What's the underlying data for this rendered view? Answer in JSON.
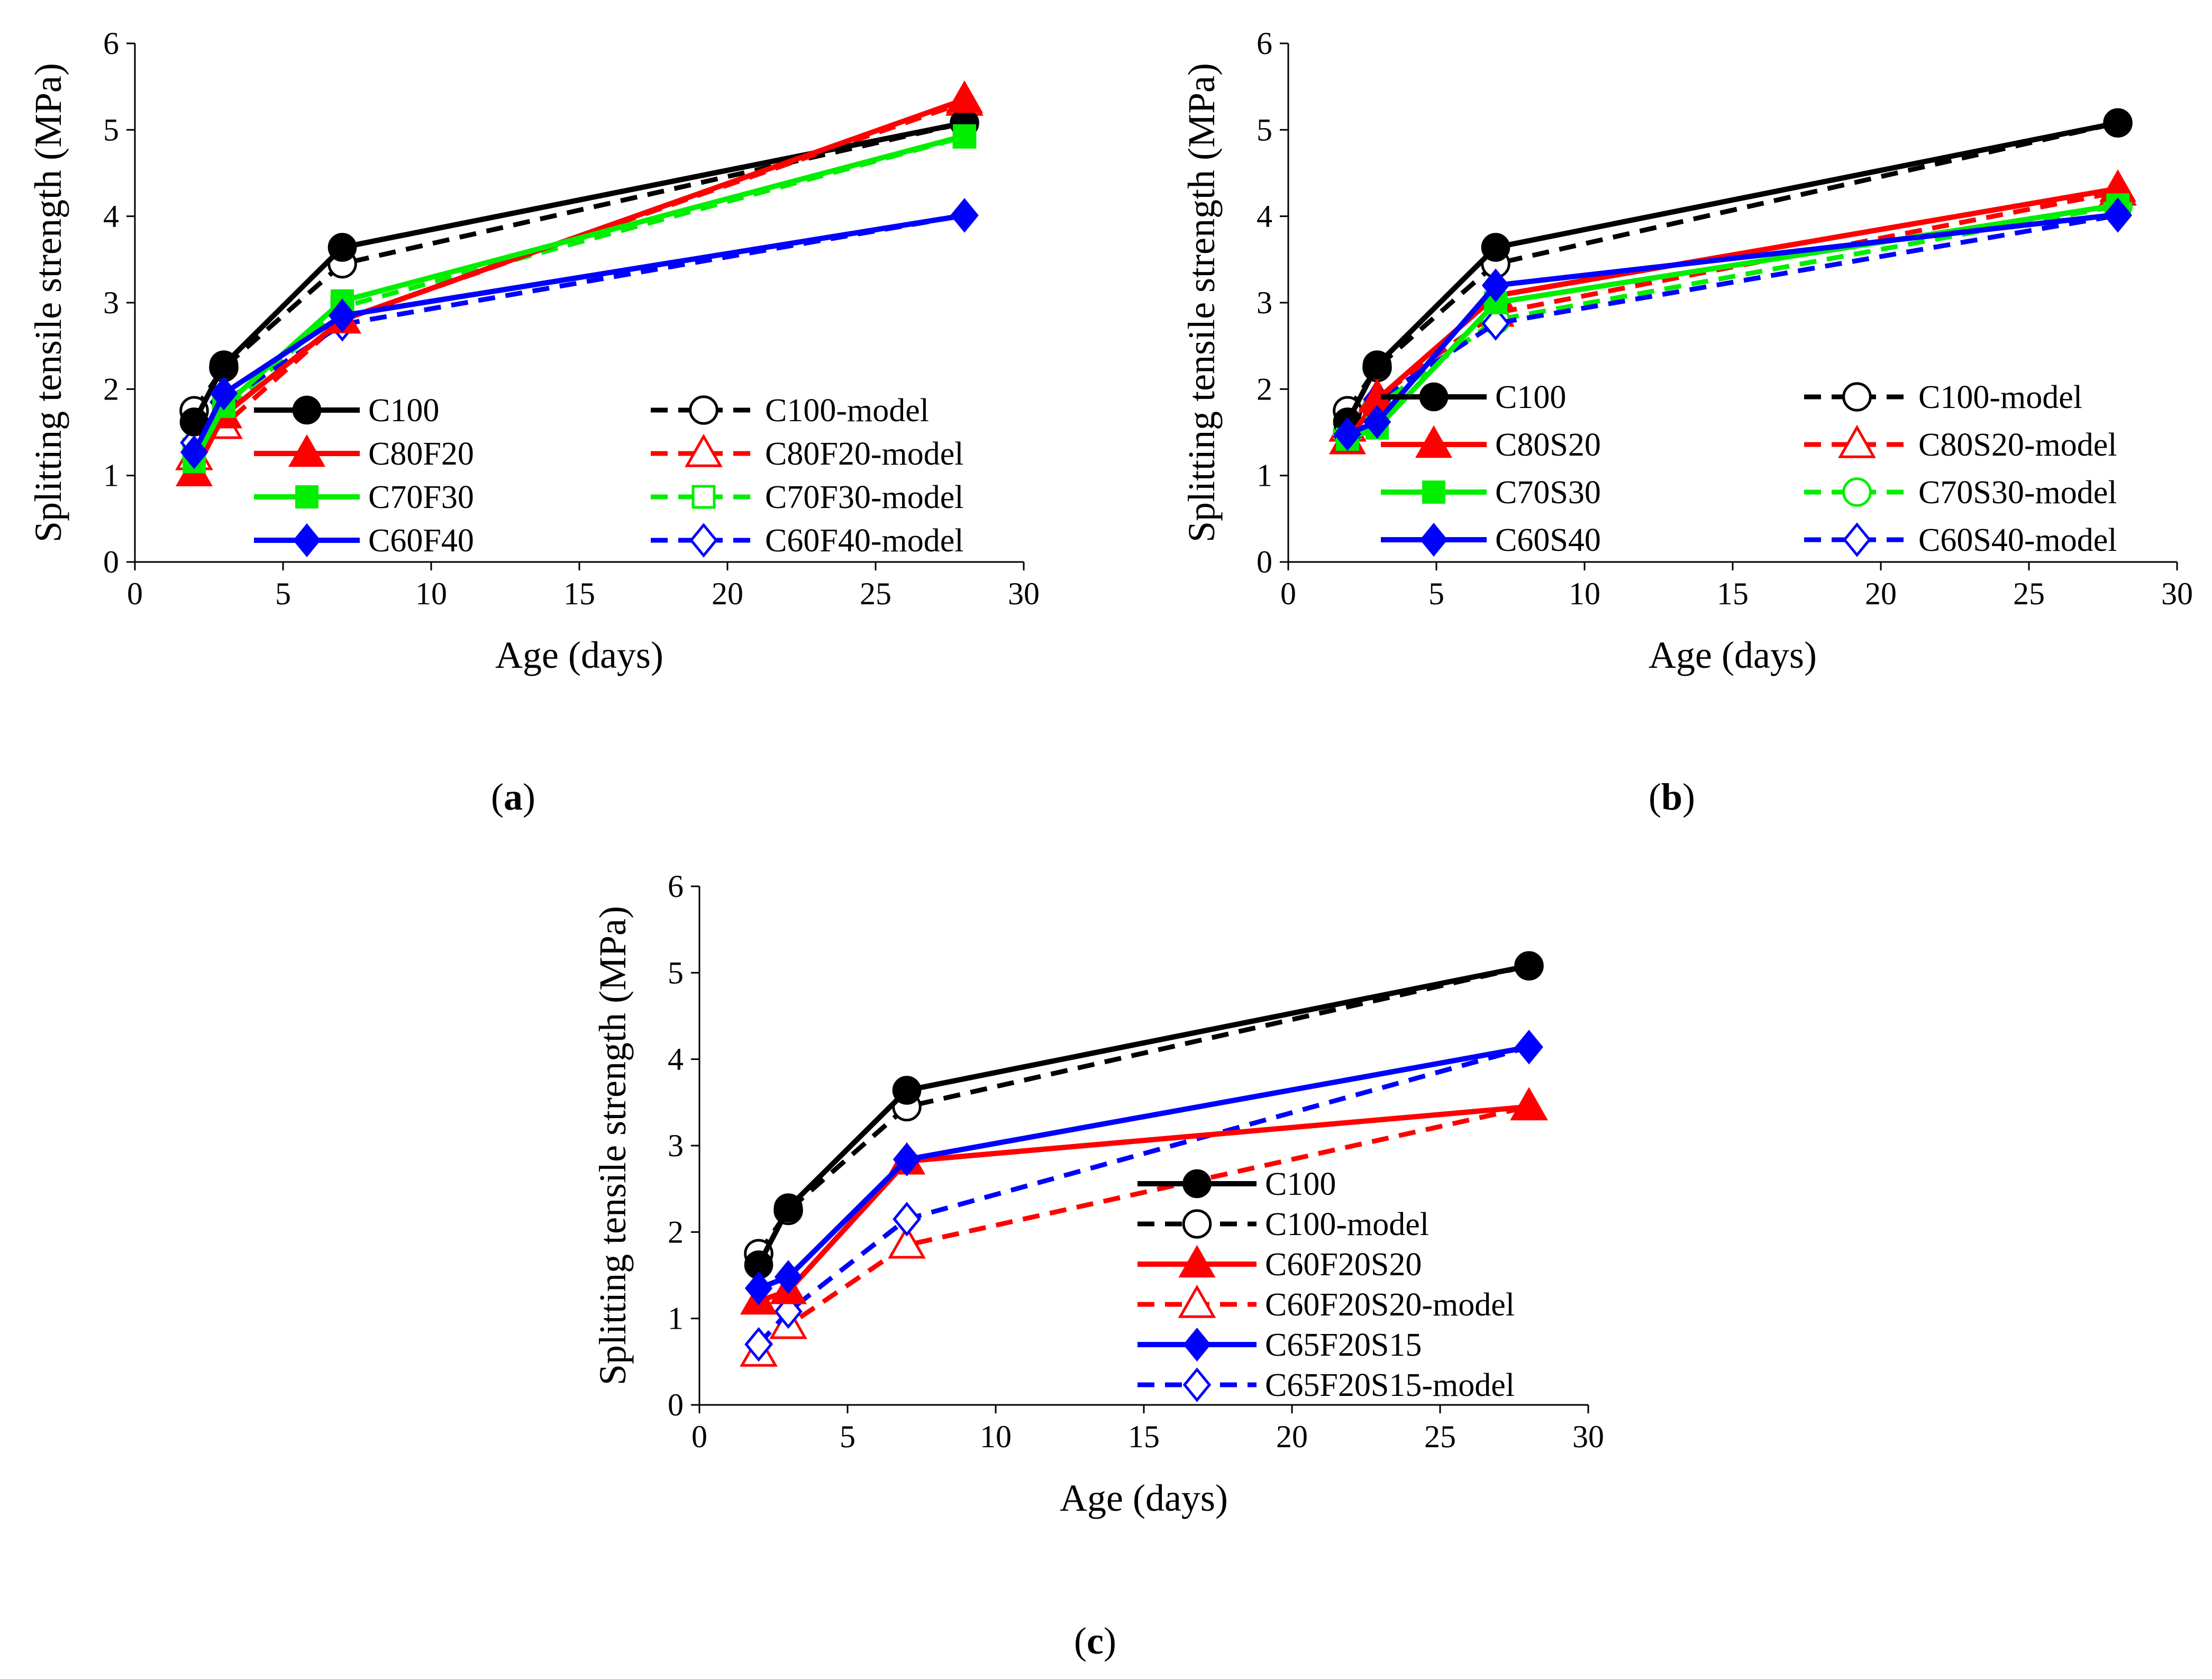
{
  "figure": {
    "panels": [
      {
        "id": "a",
        "label_open": "(",
        "label_letter": "a",
        "label_close": ")"
      },
      {
        "id": "b",
        "label_open": "(",
        "label_letter": "b",
        "label_close": ")"
      },
      {
        "id": "c",
        "label_open": "(",
        "label_letter": "c",
        "label_close": ")"
      }
    ]
  },
  "chart_data": [
    {
      "type": "line",
      "panel": "a",
      "xlabel": "Age (days)",
      "ylabel": "Splitting tensile strength (MPa)",
      "xlim": [
        0,
        30
      ],
      "ylim": [
        0,
        6
      ],
      "xticks": [
        0,
        5,
        10,
        15,
        20,
        25,
        30
      ],
      "yticks": [
        0,
        1,
        2,
        3,
        4,
        5,
        6
      ],
      "grid": false,
      "legend_position": "lower-right, two columns",
      "x": [
        2,
        3,
        7,
        28
      ],
      "series": [
        {
          "name": "C100",
          "values": [
            1.62,
            2.28,
            3.64,
            5.08
          ],
          "color": "#000000",
          "dash": "solid",
          "marker": "circle",
          "filled": true
        },
        {
          "name": "C80F20",
          "values": [
            1.03,
            1.7,
            2.8,
            5.35
          ],
          "color": "#ff0000",
          "dash": "solid",
          "marker": "triangle",
          "filled": true
        },
        {
          "name": "C70F30",
          "values": [
            1.16,
            1.8,
            3.02,
            4.93
          ],
          "color": "#00ee00",
          "dash": "solid",
          "marker": "square",
          "filled": true
        },
        {
          "name": "C60F40",
          "values": [
            1.27,
            1.95,
            2.85,
            4.01
          ],
          "color": "#0000ff",
          "dash": "solid",
          "marker": "diamond",
          "filled": true
        },
        {
          "name": "C100-model",
          "values": [
            1.75,
            2.25,
            3.45,
            5.08
          ],
          "color": "#000000",
          "dash": "dashed",
          "marker": "circle",
          "filled": false
        },
        {
          "name": "C80F20-model",
          "values": [
            1.22,
            1.58,
            2.8,
            5.32
          ],
          "color": "#ff0000",
          "dash": "dashed",
          "marker": "triangle",
          "filled": false
        },
        {
          "name": "C70F30-model",
          "values": [
            1.3,
            1.75,
            2.95,
            4.92
          ],
          "color": "#00ee00",
          "dash": "dashed",
          "marker": "square",
          "filled": false
        },
        {
          "name": "C60F40-model",
          "values": [
            1.38,
            1.85,
            2.75,
            4.01
          ],
          "color": "#0000ff",
          "dash": "dashed",
          "marker": "diamond",
          "filled": false
        }
      ]
    },
    {
      "type": "line",
      "panel": "b",
      "xlabel": "Age (days)",
      "ylabel": "Splitting tensile strength (MPa)",
      "xlim": [
        0,
        30
      ],
      "ylim": [
        0,
        6
      ],
      "xticks": [
        0,
        5,
        10,
        15,
        20,
        25,
        30
      ],
      "yticks": [
        0,
        1,
        2,
        3,
        4,
        5,
        6
      ],
      "grid": false,
      "legend_position": "lower-right, two columns",
      "x": [
        2,
        3,
        7,
        28
      ],
      "series": [
        {
          "name": "C100",
          "values": [
            1.62,
            2.28,
            3.64,
            5.08
          ],
          "color": "#000000",
          "dash": "solid",
          "marker": "circle",
          "filled": true
        },
        {
          "name": "C80S20",
          "values": [
            1.4,
            1.88,
            3.08,
            4.32
          ],
          "color": "#ff0000",
          "dash": "solid",
          "marker": "triangle",
          "filled": true
        },
        {
          "name": "C70S30",
          "values": [
            1.42,
            1.55,
            3.0,
            4.13
          ],
          "color": "#00ee00",
          "dash": "solid",
          "marker": "square",
          "filled": true
        },
        {
          "name": "C60S40",
          "values": [
            1.48,
            1.62,
            3.2,
            4.02
          ],
          "color": "#0000ff",
          "dash": "solid",
          "marker": "diamond",
          "filled": true
        },
        {
          "name": "C100-model",
          "values": [
            1.75,
            2.25,
            3.45,
            5.08
          ],
          "color": "#000000",
          "dash": "dashed",
          "marker": "circle",
          "filled": false
        },
        {
          "name": "C80S20-model",
          "values": [
            1.55,
            1.9,
            2.88,
            4.28
          ],
          "color": "#ff0000",
          "dash": "dashed",
          "marker": "triangle",
          "filled": false
        },
        {
          "name": "C70S30-model",
          "values": [
            1.5,
            1.8,
            2.8,
            4.12
          ],
          "color": "#00ee00",
          "dash": "dashed",
          "marker": "circle",
          "filled": false
        },
        {
          "name": "C60S40-model",
          "values": [
            1.45,
            1.88,
            2.76,
            4.01
          ],
          "color": "#0000ff",
          "dash": "dashed",
          "marker": "diamond",
          "filled": false
        }
      ]
    },
    {
      "type": "line",
      "panel": "c",
      "xlabel": "Age (days)",
      "ylabel": "Splitting tensile strength (MPa)",
      "xlim": [
        0,
        30
      ],
      "ylim": [
        0,
        6
      ],
      "xticks": [
        0,
        5,
        10,
        15,
        20,
        25,
        30
      ],
      "yticks": [
        0,
        1,
        2,
        3,
        4,
        5,
        6
      ],
      "grid": false,
      "legend_position": "lower-right, one column",
      "x": [
        2,
        3,
        7,
        28
      ],
      "series": [
        {
          "name": "C100",
          "values": [
            1.62,
            2.28,
            3.64,
            5.08
          ],
          "color": "#000000",
          "dash": "solid",
          "marker": "circle",
          "filled": true
        },
        {
          "name": "C100-model",
          "values": [
            1.75,
            2.25,
            3.45,
            5.08
          ],
          "color": "#000000",
          "dash": "dashed",
          "marker": "circle",
          "filled": false
        },
        {
          "name": "C60F20S20",
          "values": [
            1.2,
            1.32,
            2.82,
            3.45
          ],
          "color": "#ff0000",
          "dash": "solid",
          "marker": "triangle",
          "filled": true
        },
        {
          "name": "C60F20S20-model",
          "values": [
            0.6,
            0.92,
            1.85,
            3.45
          ],
          "color": "#ff0000",
          "dash": "dashed",
          "marker": "triangle",
          "filled": false
        },
        {
          "name": "C65F20S15",
          "values": [
            1.35,
            1.48,
            2.84,
            4.14
          ],
          "color": "#0000ff",
          "dash": "solid",
          "marker": "diamond",
          "filled": true
        },
        {
          "name": "C65F20S15-model",
          "values": [
            0.7,
            1.08,
            2.15,
            4.14
          ],
          "color": "#0000ff",
          "dash": "dashed",
          "marker": "diamond",
          "filled": false
        }
      ]
    }
  ]
}
